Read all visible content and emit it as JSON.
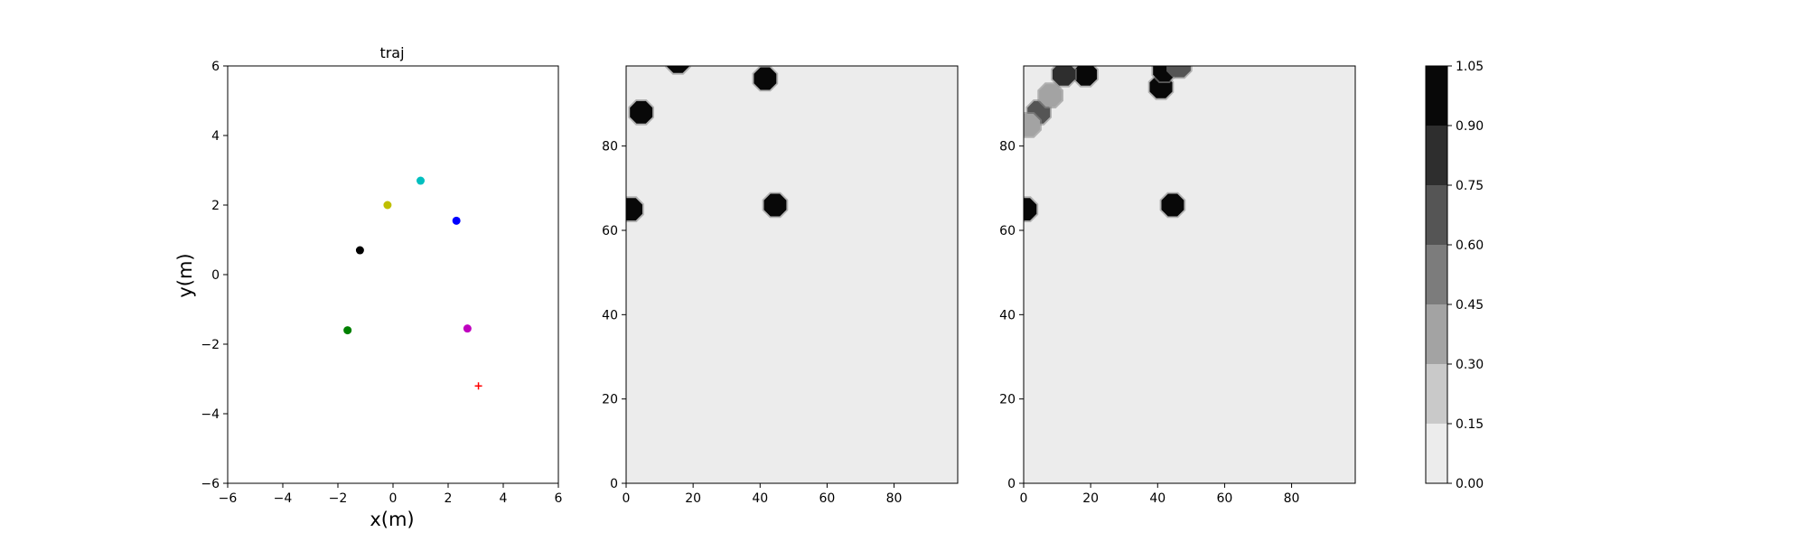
{
  "chart_data": [
    {
      "type": "scatter",
      "title": "traj",
      "xlabel": "x(m)",
      "ylabel": "y(m)",
      "xlim": [
        -6,
        6
      ],
      "ylim": [
        -6,
        6
      ],
      "xticks": [
        -6,
        -4,
        -2,
        0,
        2,
        4,
        6
      ],
      "yticks": [
        -6,
        -4,
        -2,
        0,
        2,
        4,
        6
      ],
      "grid": false,
      "points": [
        {
          "x": 1.0,
          "y": 2.7,
          "color": "#00bfbf",
          "marker": "circle"
        },
        {
          "x": -0.2,
          "y": 2.0,
          "color": "#bfbf00",
          "marker": "circle"
        },
        {
          "x": 2.3,
          "y": 1.55,
          "color": "#0000ff",
          "marker": "circle"
        },
        {
          "x": -1.2,
          "y": 0.7,
          "color": "#000000",
          "marker": "circle"
        },
        {
          "x": -1.65,
          "y": -1.6,
          "color": "#008000",
          "marker": "circle"
        },
        {
          "x": 2.7,
          "y": -1.55,
          "color": "#bf00bf",
          "marker": "circle"
        },
        {
          "x": 3.1,
          "y": -3.2,
          "color": "#ff0000",
          "marker": "plus"
        }
      ]
    },
    {
      "type": "heatmap",
      "xlim": [
        0,
        99
      ],
      "ylim": [
        0,
        99
      ],
      "xticks": [
        0,
        20,
        40,
        60,
        80
      ],
      "yticks": [
        0,
        20,
        40,
        60,
        80
      ],
      "background_level": 0.05,
      "blobs": [
        {
          "x": 1.5,
          "y": 65,
          "level": 1.0
        },
        {
          "x": 44.5,
          "y": 66,
          "level": 1.0
        },
        {
          "x": 4.5,
          "y": 88,
          "level": 1.0
        },
        {
          "x": 41.5,
          "y": 96,
          "level": 1.0
        },
        {
          "x": 15.5,
          "y": 100,
          "level": 1.0
        }
      ]
    },
    {
      "type": "heatmap",
      "xlim": [
        0,
        99
      ],
      "ylim": [
        0,
        99
      ],
      "xticks": [
        0,
        20,
        40,
        60,
        80
      ],
      "yticks": [
        0,
        20,
        40,
        60,
        80
      ],
      "background_level": 0.05,
      "blobs": [
        {
          "x": 0.5,
          "y": 65,
          "level": 1.0
        },
        {
          "x": 44.5,
          "y": 66,
          "level": 1.0
        },
        {
          "x": 41.0,
          "y": 94,
          "level": 0.95
        },
        {
          "x": 42.0,
          "y": 98,
          "level": 0.9
        },
        {
          "x": 18.5,
          "y": 97,
          "level": 0.9
        },
        {
          "x": 12.0,
          "y": 97,
          "level": 0.85
        },
        {
          "x": 4.5,
          "y": 88,
          "level": 0.65
        },
        {
          "x": 8.0,
          "y": 92,
          "level": 0.4
        },
        {
          "x": 1.5,
          "y": 85,
          "level": 0.35
        },
        {
          "x": 46.5,
          "y": 99,
          "level": 0.6
        }
      ]
    },
    {
      "type": "colorbar",
      "levels": [
        0.0,
        0.15,
        0.3,
        0.45,
        0.6,
        0.75,
        0.9,
        1.05
      ],
      "tick_labels": [
        "0.00",
        "0.15",
        "0.30",
        "0.45",
        "0.60",
        "0.75",
        "0.90",
        "1.05"
      ],
      "colors": [
        "#ececec",
        "#c9c9c9",
        "#a3a3a3",
        "#7c7c7c",
        "#555555",
        "#2e2e2e",
        "#080808"
      ]
    }
  ]
}
